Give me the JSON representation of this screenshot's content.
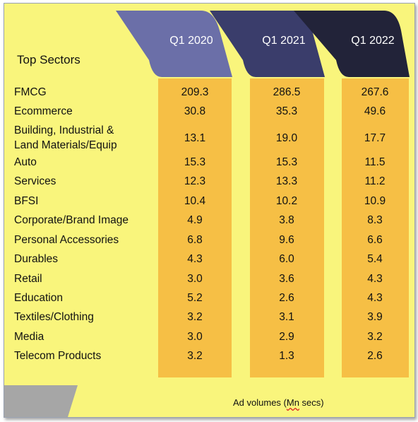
{
  "table_title": "Top Sectors",
  "columns": [
    "Q1 2020",
    "Q1 2021",
    "Q1 2022"
  ],
  "rows": [
    {
      "label": "FMCG",
      "values": [
        "209.3",
        "286.5",
        "267.6"
      ]
    },
    {
      "label": "Ecommerce",
      "values": [
        "30.8",
        "35.3",
        "49.6"
      ]
    },
    {
      "label": "Building, Industrial &",
      "label2": "Land Materials/Equip",
      "values": [
        "13.1",
        "19.0",
        "17.7"
      ]
    },
    {
      "label": "Auto",
      "values": [
        "15.3",
        "15.3",
        "11.5"
      ]
    },
    {
      "label": "Services",
      "values": [
        "12.3",
        "13.3",
        "11.2"
      ]
    },
    {
      "label": "BFSI",
      "values": [
        "10.4",
        "10.2",
        "10.9"
      ]
    },
    {
      "label": "Corporate/Brand Image",
      "values": [
        "4.9",
        "3.8",
        "8.3"
      ]
    },
    {
      "label": "Personal Accessories",
      "values": [
        "6.8",
        "9.6",
        "6.6"
      ]
    },
    {
      "label": "Durables",
      "values": [
        "4.3",
        "6.0",
        "5.4"
      ]
    },
    {
      "label": "Retail",
      "values": [
        "3.0",
        "3.6",
        "4.3"
      ]
    },
    {
      "label": "Education",
      "values": [
        "5.2",
        "2.6",
        "4.3"
      ]
    },
    {
      "label": "Textiles/Clothing",
      "values": [
        "3.2",
        "3.1",
        "3.9"
      ]
    },
    {
      "label": "Media",
      "values": [
        "3.0",
        "2.9",
        "3.2"
      ]
    },
    {
      "label": "Telecom Products",
      "values": [
        "3.2",
        "1.3",
        "2.6"
      ]
    }
  ],
  "footnote_prefix": "Ad volumes (",
  "footnote_unit": "Mn",
  "footnote_suffix": " secs)",
  "colors": {
    "background": "#f9f57c",
    "column_fill": "#f6bf45",
    "header_2020": "#6b6fa8",
    "header_2021": "#3a3d6b",
    "header_2022": "#222339"
  }
}
